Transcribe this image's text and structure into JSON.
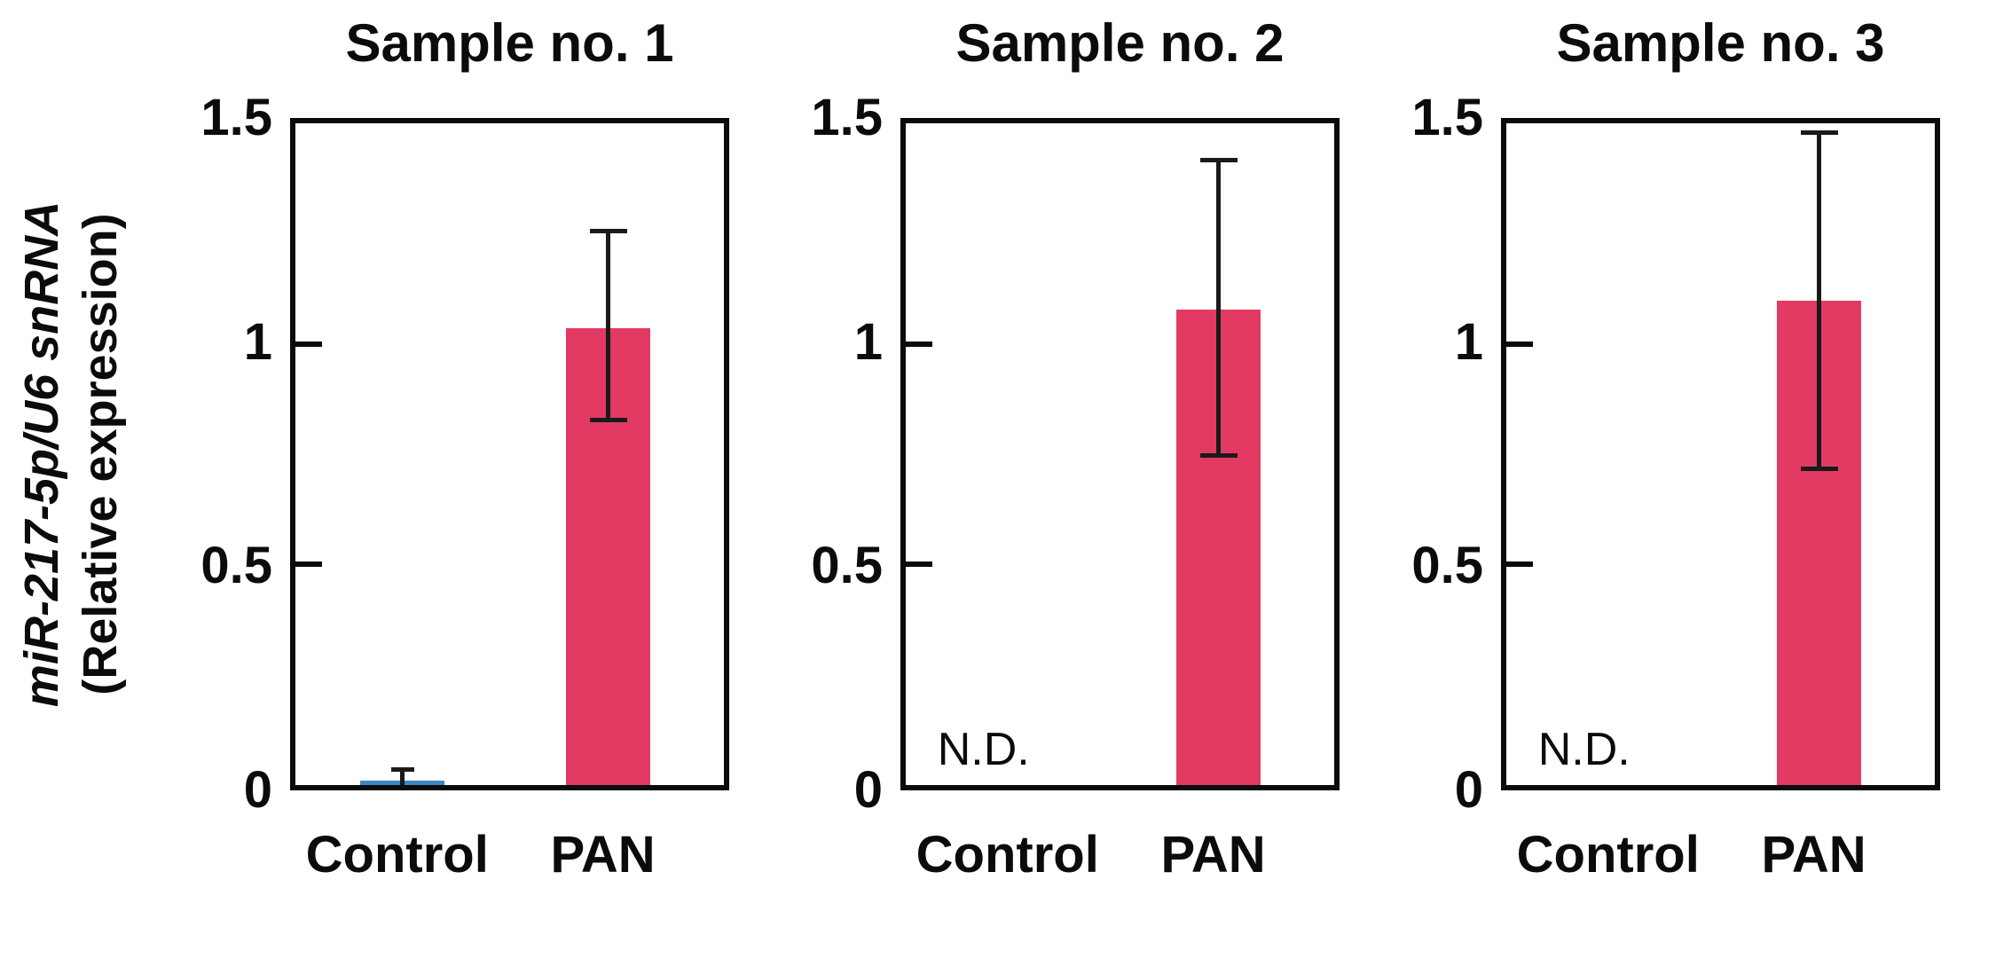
{
  "figure": {
    "y_axis_label_line1": "miR-217-5p/U6 snRNA",
    "y_axis_label_line2": "(Relative expression)",
    "colors": {
      "pan_bar": "#E23A63",
      "control_bar": "#3E86C4",
      "axis_ink": "#0b0b0b"
    },
    "not_detected_label": "N.D."
  },
  "chart_data": {
    "type": "bar",
    "ylabel": "miR-217-5p/U6 snRNA (Relative expression)",
    "ylim": [
      0,
      1.5
    ],
    "yticks": [
      {
        "label": "1.5",
        "value": 1.5
      },
      {
        "label": "1",
        "value": 1.0
      },
      {
        "label": "0.5",
        "value": 0.5
      },
      {
        "label": "0",
        "value": 0.0
      }
    ],
    "categories": [
      "Control",
      "PAN"
    ],
    "grid": false,
    "legend": "none",
    "panels": [
      {
        "title": "Sample no. 1",
        "bars": [
          {
            "category": "Control",
            "value": 0.01,
            "err_low": 0.0,
            "err_high": 0.04,
            "color_key": "control_bar",
            "nd": false
          },
          {
            "category": "PAN",
            "value": 1.02,
            "err_low": 0.81,
            "err_high": 1.24,
            "color_key": "pan_bar",
            "nd": false
          }
        ]
      },
      {
        "title": "Sample no. 2",
        "bars": [
          {
            "category": "Control",
            "value": null,
            "nd": true,
            "nd_label": "N.D."
          },
          {
            "category": "PAN",
            "value": 1.06,
            "err_low": 0.73,
            "err_high": 1.4,
            "color_key": "pan_bar",
            "nd": false
          }
        ]
      },
      {
        "title": "Sample no. 3",
        "bars": [
          {
            "category": "Control",
            "value": null,
            "nd": true,
            "nd_label": "N.D."
          },
          {
            "category": "PAN",
            "value": 1.08,
            "err_low": 0.7,
            "err_high": 1.46,
            "color_key": "pan_bar",
            "nd": false
          }
        ]
      }
    ]
  }
}
